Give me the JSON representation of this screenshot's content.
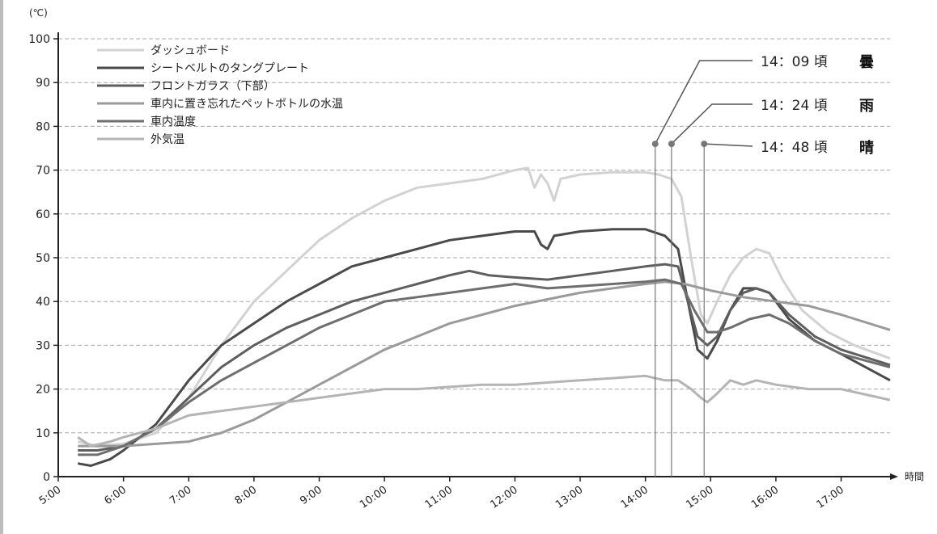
{
  "chart_data": {
    "type": "line",
    "ylabel": "(℃)",
    "xlabel": "時間",
    "ylim": [
      0,
      100
    ],
    "xlim": [
      5.0,
      17.75
    ],
    "yticks": [
      0,
      10,
      20,
      30,
      40,
      50,
      60,
      70,
      80,
      90,
      100
    ],
    "xticks": [
      {
        "value": 5,
        "label": "5:00"
      },
      {
        "value": 6,
        "label": "6:00"
      },
      {
        "value": 7,
        "label": "7:00"
      },
      {
        "value": 8,
        "label": "8:00"
      },
      {
        "value": 9,
        "label": "9:00"
      },
      {
        "value": 10,
        "label": "10:00"
      },
      {
        "value": 11,
        "label": "11:00"
      },
      {
        "value": 12,
        "label": "12:00"
      },
      {
        "value": 13,
        "label": "13:00"
      },
      {
        "value": 14,
        "label": "14:00"
      },
      {
        "value": 15,
        "label": "15:00"
      },
      {
        "value": 16,
        "label": "16:00"
      },
      {
        "value": 17,
        "label": "17:00"
      }
    ],
    "grid": true,
    "legend_position": "top-left",
    "series": [
      {
        "name": "ダッシュボード",
        "color": "#d2d2d2",
        "points": [
          [
            5.3,
            8
          ],
          [
            5.6,
            7
          ],
          [
            6.0,
            7.5
          ],
          [
            6.5,
            10
          ],
          [
            7.0,
            18
          ],
          [
            7.5,
            30
          ],
          [
            8.0,
            40
          ],
          [
            8.5,
            47
          ],
          [
            9.0,
            54
          ],
          [
            9.5,
            59
          ],
          [
            10.0,
            63
          ],
          [
            10.5,
            66
          ],
          [
            11.0,
            67
          ],
          [
            11.5,
            68
          ],
          [
            12.0,
            70
          ],
          [
            12.2,
            70.5
          ],
          [
            12.3,
            66
          ],
          [
            12.4,
            69
          ],
          [
            12.5,
            67
          ],
          [
            12.6,
            63
          ],
          [
            12.7,
            68
          ],
          [
            13.0,
            69
          ],
          [
            13.5,
            69.5
          ],
          [
            14.0,
            69.5
          ],
          [
            14.2,
            69
          ],
          [
            14.4,
            68
          ],
          [
            14.55,
            64
          ],
          [
            14.7,
            50
          ],
          [
            14.85,
            37
          ],
          [
            14.95,
            35
          ],
          [
            15.1,
            40
          ],
          [
            15.3,
            46
          ],
          [
            15.5,
            50
          ],
          [
            15.7,
            52
          ],
          [
            15.9,
            51
          ],
          [
            16.1,
            45
          ],
          [
            16.4,
            38
          ],
          [
            16.8,
            33
          ],
          [
            17.2,
            30
          ],
          [
            17.75,
            27
          ]
        ]
      },
      {
        "name": "シートベルトのタングプレート",
        "color": "#4a4a4a",
        "points": [
          [
            5.3,
            3
          ],
          [
            5.5,
            2.5
          ],
          [
            5.8,
            4
          ],
          [
            6.0,
            6
          ],
          [
            6.5,
            12
          ],
          [
            7.0,
            22
          ],
          [
            7.5,
            30
          ],
          [
            8.0,
            35
          ],
          [
            8.5,
            40
          ],
          [
            9.0,
            44
          ],
          [
            9.5,
            48
          ],
          [
            10.0,
            50
          ],
          [
            10.5,
            52
          ],
          [
            11.0,
            54
          ],
          [
            11.5,
            55
          ],
          [
            12.0,
            56
          ],
          [
            12.3,
            56
          ],
          [
            12.4,
            53
          ],
          [
            12.5,
            52
          ],
          [
            12.6,
            55
          ],
          [
            13.0,
            56
          ],
          [
            13.5,
            56.5
          ],
          [
            14.0,
            56.5
          ],
          [
            14.3,
            55
          ],
          [
            14.5,
            52
          ],
          [
            14.65,
            40
          ],
          [
            14.8,
            29
          ],
          [
            14.95,
            27
          ],
          [
            15.1,
            31
          ],
          [
            15.3,
            38
          ],
          [
            15.5,
            43
          ],
          [
            15.7,
            43
          ],
          [
            15.9,
            42
          ],
          [
            16.2,
            36
          ],
          [
            16.6,
            31
          ],
          [
            17.0,
            28
          ],
          [
            17.75,
            22
          ]
        ]
      },
      {
        "name": "フロントガラス（下部）",
        "color": "#5e5e5e",
        "points": [
          [
            5.3,
            6
          ],
          [
            5.6,
            6
          ],
          [
            6.0,
            7
          ],
          [
            6.5,
            11
          ],
          [
            7.0,
            18
          ],
          [
            7.5,
            25
          ],
          [
            8.0,
            30
          ],
          [
            8.5,
            34
          ],
          [
            9.0,
            37
          ],
          [
            9.5,
            40
          ],
          [
            10.0,
            42
          ],
          [
            10.5,
            44
          ],
          [
            11.0,
            46
          ],
          [
            11.3,
            47
          ],
          [
            11.6,
            46
          ],
          [
            12.0,
            45.5
          ],
          [
            12.5,
            45
          ],
          [
            13.0,
            46
          ],
          [
            13.5,
            47
          ],
          [
            14.0,
            48
          ],
          [
            14.3,
            48.5
          ],
          [
            14.5,
            48
          ],
          [
            14.65,
            40
          ],
          [
            14.8,
            32
          ],
          [
            14.95,
            30
          ],
          [
            15.1,
            32
          ],
          [
            15.3,
            38
          ],
          [
            15.5,
            42
          ],
          [
            15.7,
            43
          ],
          [
            15.9,
            42
          ],
          [
            16.2,
            37
          ],
          [
            16.6,
            32
          ],
          [
            17.0,
            29
          ],
          [
            17.75,
            25.5
          ]
        ]
      },
      {
        "name": "車内に置き忘れたペットボトルの水温",
        "color": "#9a9a9a",
        "points": [
          [
            5.3,
            7
          ],
          [
            5.6,
            7
          ],
          [
            6.0,
            7
          ],
          [
            6.5,
            7.5
          ],
          [
            7.0,
            8
          ],
          [
            7.5,
            10
          ],
          [
            8.0,
            13
          ],
          [
            8.5,
            17
          ],
          [
            9.0,
            21
          ],
          [
            9.5,
            25
          ],
          [
            10.0,
            29
          ],
          [
            10.5,
            32
          ],
          [
            11.0,
            35
          ],
          [
            11.5,
            37
          ],
          [
            12.0,
            39
          ],
          [
            12.5,
            40.5
          ],
          [
            13.0,
            42
          ],
          [
            13.5,
            43
          ],
          [
            14.0,
            44
          ],
          [
            14.3,
            44.5
          ],
          [
            14.6,
            44
          ],
          [
            15.0,
            42.5
          ],
          [
            15.5,
            41
          ],
          [
            16.0,
            40
          ],
          [
            16.5,
            39
          ],
          [
            17.0,
            37
          ],
          [
            17.75,
            33.5
          ]
        ]
      },
      {
        "name": "車内温度",
        "color": "#6e6e6e",
        "points": [
          [
            5.3,
            5
          ],
          [
            5.6,
            5
          ],
          [
            6.0,
            7
          ],
          [
            6.5,
            11
          ],
          [
            7.0,
            17
          ],
          [
            7.5,
            22
          ],
          [
            8.0,
            26
          ],
          [
            8.5,
            30
          ],
          [
            9.0,
            34
          ],
          [
            9.5,
            37
          ],
          [
            10.0,
            40
          ],
          [
            10.5,
            41
          ],
          [
            11.0,
            42
          ],
          [
            11.5,
            43
          ],
          [
            12.0,
            44
          ],
          [
            12.5,
            43
          ],
          [
            13.0,
            43.5
          ],
          [
            13.5,
            44
          ],
          [
            14.0,
            44.5
          ],
          [
            14.3,
            45
          ],
          [
            14.55,
            44
          ],
          [
            14.75,
            38
          ],
          [
            14.95,
            33
          ],
          [
            15.1,
            33
          ],
          [
            15.3,
            34
          ],
          [
            15.6,
            36
          ],
          [
            15.9,
            37
          ],
          [
            16.2,
            35
          ],
          [
            16.6,
            31
          ],
          [
            17.0,
            28
          ],
          [
            17.75,
            25
          ]
        ]
      },
      {
        "name": "外気温",
        "color": "#b4b4b4",
        "points": [
          [
            5.3,
            9
          ],
          [
            5.5,
            7
          ],
          [
            5.8,
            8
          ],
          [
            6.0,
            9
          ],
          [
            6.5,
            11
          ],
          [
            7.0,
            14
          ],
          [
            7.5,
            15
          ],
          [
            8.0,
            16
          ],
          [
            8.5,
            17
          ],
          [
            9.0,
            18
          ],
          [
            9.5,
            19
          ],
          [
            10.0,
            20
          ],
          [
            10.5,
            20
          ],
          [
            11.0,
            20.5
          ],
          [
            11.5,
            21
          ],
          [
            12.0,
            21
          ],
          [
            12.5,
            21.5
          ],
          [
            13.0,
            22
          ],
          [
            13.5,
            22.5
          ],
          [
            14.0,
            23
          ],
          [
            14.3,
            22
          ],
          [
            14.5,
            22
          ],
          [
            14.7,
            20
          ],
          [
            14.85,
            18
          ],
          [
            14.95,
            17
          ],
          [
            15.1,
            19
          ],
          [
            15.3,
            22
          ],
          [
            15.5,
            21
          ],
          [
            15.7,
            22
          ],
          [
            16.0,
            21
          ],
          [
            16.5,
            20
          ],
          [
            17.0,
            20
          ],
          [
            17.75,
            17.5
          ]
        ]
      }
    ],
    "annotations": [
      {
        "time": "14：09 頃",
        "weather": "曇",
        "x": 14.15,
        "y": 76
      },
      {
        "time": "14：24 頃",
        "weather": "雨",
        "x": 14.4,
        "y": 76
      },
      {
        "time": "14：48 頃",
        "weather": "晴",
        "x": 14.9,
        "y": 76
      }
    ]
  }
}
